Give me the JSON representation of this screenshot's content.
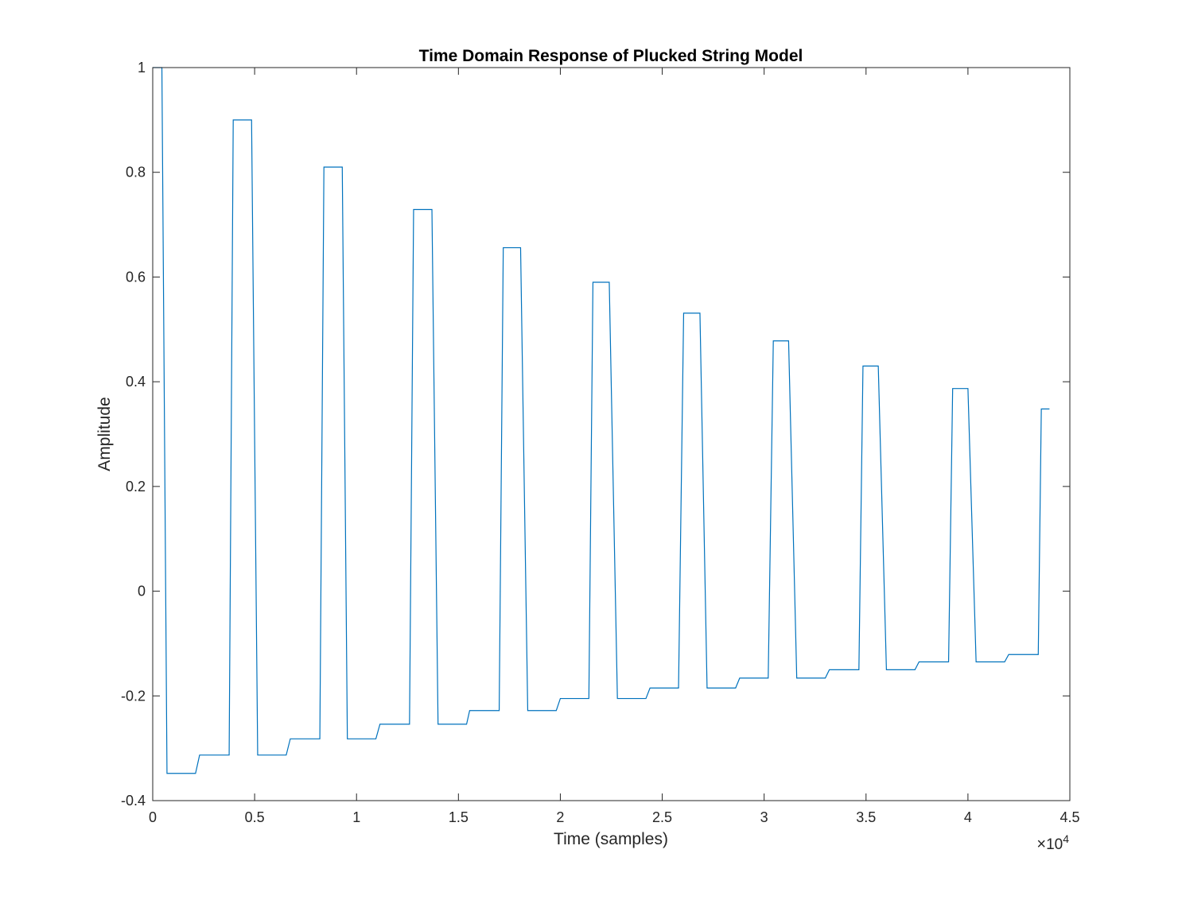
{
  "chart_data": {
    "type": "line",
    "title": "Time Domain Response of Plucked String Model",
    "xlabel": "Time (samples)",
    "ylabel": "Amplitude",
    "xlim": [
      0,
      45000
    ],
    "ylim": [
      -0.4,
      1
    ],
    "x_exponent": {
      "times": "×",
      "base": "10",
      "power": "4"
    },
    "x_ticks": [
      0,
      5000,
      10000,
      15000,
      20000,
      25000,
      30000,
      35000,
      40000,
      45000
    ],
    "x_tick_labels": [
      "0",
      "0.5",
      "1",
      "1.5",
      "2",
      "2.5",
      "3",
      "3.5",
      "4",
      "4.5"
    ],
    "y_ticks": [
      -0.4,
      -0.2,
      0,
      0.2,
      0.4,
      0.6,
      0.8,
      1
    ],
    "y_tick_labels": [
      "-0.4",
      "-0.2",
      "0",
      "0.2",
      "0.4",
      "0.6",
      "0.8",
      "1"
    ],
    "grid": false,
    "line_color": "#0072BD",
    "axis_color": "#262626",
    "series": [
      {
        "x": [
          0,
          450,
          700,
          2100,
          2300,
          3750,
          3950,
          4850,
          5150,
          6550,
          6750,
          8200,
          8400,
          9300,
          9550,
          10950,
          11150,
          12600,
          12800,
          13700,
          14000,
          15400,
          15550,
          17000,
          17200,
          18050,
          18400,
          19800,
          20000,
          21400,
          21600,
          22400,
          22800,
          24200,
          24400,
          25800,
          26050,
          26850,
          27200,
          28600,
          28800,
          30200,
          30450,
          31200,
          31600,
          33000,
          33200,
          34650,
          34850,
          35600,
          36000,
          37400,
          37600,
          39050,
          39250,
          40000,
          40400,
          41800,
          42000,
          43450,
          43600,
          44000
        ],
        "y": [
          1,
          1,
          -0.348,
          -0.348,
          -0.313,
          -0.313,
          0.9,
          0.9,
          -0.313,
          -0.313,
          -0.282,
          -0.282,
          0.81,
          0.81,
          -0.282,
          -0.282,
          -0.254,
          -0.254,
          0.729,
          0.729,
          -0.254,
          -0.254,
          -0.228,
          -0.228,
          0.656,
          0.656,
          -0.228,
          -0.228,
          -0.205,
          -0.205,
          0.59,
          0.59,
          -0.205,
          -0.205,
          -0.185,
          -0.185,
          0.531,
          0.531,
          -0.185,
          -0.185,
          -0.166,
          -0.166,
          0.478,
          0.478,
          -0.166,
          -0.166,
          -0.15,
          -0.15,
          0.43,
          0.43,
          -0.15,
          -0.15,
          -0.135,
          -0.135,
          0.387,
          0.387,
          -0.135,
          -0.135,
          -0.121,
          -0.121,
          0.348,
          0.348
        ]
      }
    ]
  }
}
